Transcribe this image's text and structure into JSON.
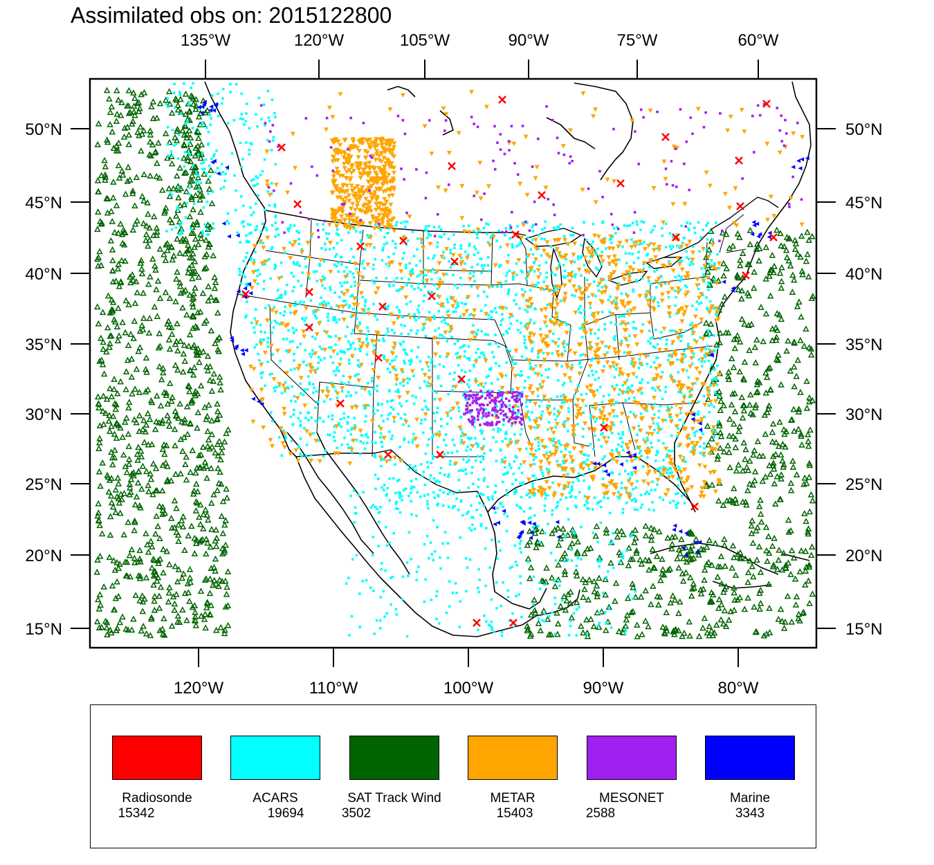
{
  "title": "Assimilated obs on: 2015122800",
  "axes": {
    "top_lon_labels": [
      "135°W",
      "120°W",
      "105°W",
      "90°W",
      "75°W",
      "60°W"
    ],
    "bottom_lon_labels": [
      "120°W",
      "110°W",
      "100°W",
      "90°W",
      "80°W"
    ],
    "left_lat_labels": [
      "50°N",
      "45°N",
      "40°N",
      "35°N",
      "30°N",
      "25°N",
      "20°N",
      "15°N"
    ],
    "right_lat_labels": [
      "50°N",
      "45°N",
      "40°N",
      "35°N",
      "30°N",
      "25°N",
      "20°N",
      "15°N"
    ]
  },
  "colors": {
    "radiosonde": "#ff0000",
    "acars": "#00ffff",
    "sat_track_wind": "#006400",
    "metar": "#ffa500",
    "mesonet": "#a020f0",
    "marine": "#0000ff"
  },
  "legend": [
    {
      "key": "radiosonde",
      "name": "Radiosonde",
      "count": "15342",
      "color": "#ff0000"
    },
    {
      "key": "acars",
      "name": "ACARS",
      "count": "19694",
      "color": "#00ffff"
    },
    {
      "key": "sat_track_wind",
      "name": "SAT Track Wind",
      "count": "3502",
      "color": "#006400"
    },
    {
      "key": "metar",
      "name": "METAR",
      "count": "15403",
      "color": "#ffa500"
    },
    {
      "key": "mesonet",
      "name": "MESONET",
      "count": "2588",
      "color": "#a020f0"
    },
    {
      "key": "marine",
      "name": "Marine",
      "count": "3343",
      "color": "#0000ff"
    }
  ]
}
